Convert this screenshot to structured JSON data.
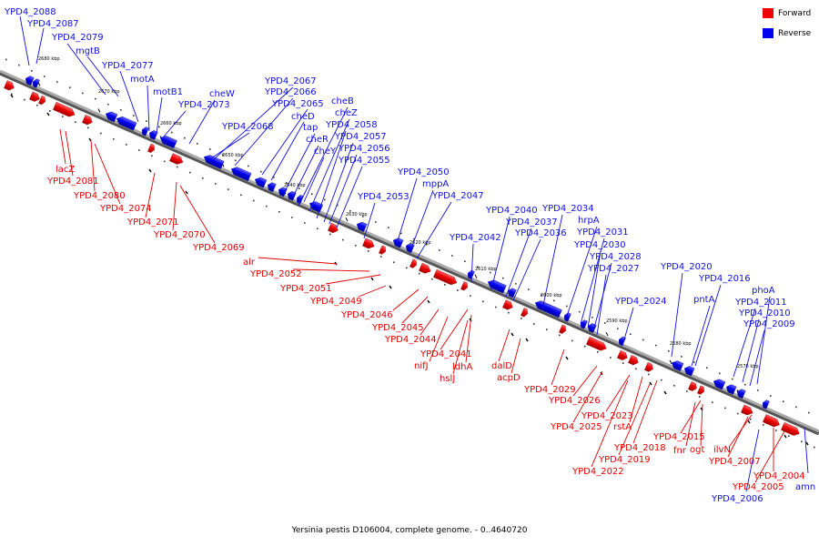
{
  "caption": "Yersinia pestis D106004, complete genome. - 0..4640720",
  "legend": [
    {
      "label": "Forward",
      "color": "#ee0000"
    },
    {
      "label": "Reverse",
      "color": "#0000ee"
    }
  ],
  "colors": {
    "forward": "#ee0000",
    "reverse": "#0000ee",
    "backbone": "#999999"
  },
  "ticks": [
    "2680 kbp",
    "2670 kbp",
    "2660 kbp",
    "2650 kbp",
    "2640 kbp",
    "2630 kbp",
    "2620 kbp",
    "2610 kbp",
    "2600 kbp",
    "2590 kbp",
    "2580 kbp",
    "2570 kbp"
  ],
  "forward_labels": [
    "lacZ",
    "YPD4_2081",
    "YPD4_2080",
    "YPD4_2074",
    "YPD4_2071",
    "YPD4_2070",
    "YPD4_2069",
    "alr",
    "YPD4_2052",
    "YPD4_2051",
    "YPD4_2049",
    "YPD4_2046",
    "YPD4_2045",
    "YPD4_2044",
    "YPD4_2041",
    "nifJ",
    "ldhA",
    "hslJ",
    "dalD",
    "acpD",
    "YPD4_2029",
    "YPD4_2026",
    "YPD4_2025",
    "YPD4_2023",
    "rstA",
    "YPD4_2018",
    "YPD4_2019",
    "YPD4_2022",
    "YPD4_2015",
    "fnr",
    "ogt",
    "ilvN",
    "YPD4_2007",
    "YPD4_2004",
    "YPD4_2005",
    "YPD4_2006"
  ],
  "reverse_labels": [
    "YPD4_2088",
    "YPD4_2087",
    "YPD4_2079",
    "mgtB",
    "YPD4_2077",
    "motA",
    "motB1",
    "cheW",
    "YPD4_2073",
    "YPD4_2067",
    "YPD4_2066",
    "YPD4_2065",
    "YPD4_2068",
    "cheD",
    "tap",
    "cheR",
    "cheY",
    "cheB",
    "cheZ",
    "YPD4_2058",
    "YPD4_2057",
    "YPD4_2056",
    "YPD4_2055",
    "YPD4_2050",
    "mppA",
    "YPD4_2053",
    "YPD4_2047",
    "YPD4_2042",
    "YPD4_2040",
    "YPD4_2037",
    "YPD4_2036",
    "YPD4_2034",
    "hrpA",
    "YPD4_2031",
    "YPD4_2030",
    "YPD4_2028",
    "YPD4_2027",
    "YPD4_2024",
    "YPD4_2020",
    "YPD4_2016",
    "pntA",
    "phoA",
    "YPD4_2011",
    "YPD4_2010",
    "YPD4_2009",
    "amn"
  ]
}
